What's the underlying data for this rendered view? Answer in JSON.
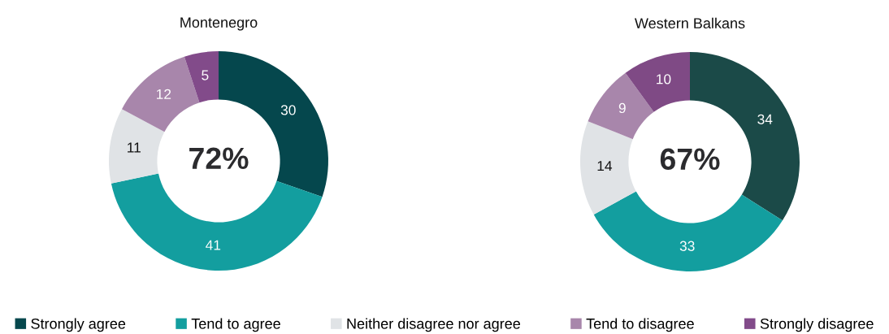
{
  "chart_data": [
    {
      "type": "donut",
      "title": "Montenegro",
      "categories": [
        "Strongly agree",
        "Tend to agree",
        "Neither disagree nor agree",
        "Tend to disagree",
        "Strongly disagree"
      ],
      "values": [
        30,
        41,
        11,
        12,
        5
      ],
      "colors": [
        "#05474d",
        "#139e9f",
        "#e0e3e6",
        "#a886ab",
        "#824b8a"
      ],
      "data_labels": true,
      "annotations": [
        "72%"
      ],
      "legend": "bottom"
    },
    {
      "type": "donut",
      "title": "Western Balkans",
      "categories": [
        null,
        null,
        null,
        null,
        null
      ],
      "values": [
        34,
        33,
        14,
        9,
        10
      ],
      "colors": [
        "#1b4a48",
        "#139e9f",
        "#e0e3e6",
        "#a886ab",
        "#7f4a85"
      ],
      "data_labels": true,
      "annotations": [
        "67%"
      ]
    }
  ]
}
